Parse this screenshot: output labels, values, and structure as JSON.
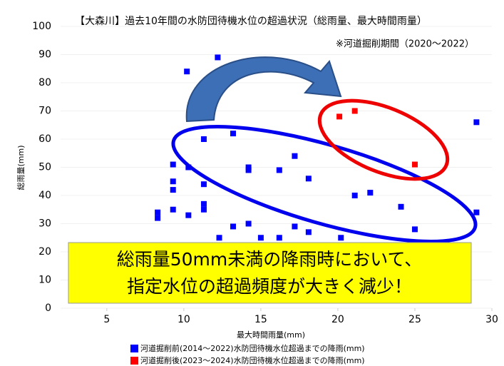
{
  "chart_data": {
    "type": "scatter",
    "title": "【大森川】過去10年間の水防団待機水位の超過状況（総雨量、最大時間雨量）",
    "subtitle": "※河道掘削期間（2020～2022）",
    "annotation": [
      "総雨量50mm未満の降雨時において、",
      "指定水位の超過頻度が大きく減少！"
    ],
    "x_label": "最大時間雨量(mm)",
    "y_label": "総雨量(mm)",
    "xlim": [
      2,
      30
    ],
    "xticks": [
      5,
      10,
      15,
      20,
      25,
      30
    ],
    "ylim": [
      0,
      100
    ],
    "yticks": [
      0,
      10,
      20,
      30,
      40,
      50,
      60,
      70,
      80,
      90,
      100
    ],
    "grid": true,
    "series": [
      {
        "name": "河道掘削前(2014～2022)水防団待機水位超過までの降雨(mm)",
        "color": "#0000ff",
        "x": [
          10.2,
          12.2,
          8.3,
          8.3,
          9.3,
          9.3,
          9.3,
          9.3,
          10.3,
          10.3,
          11.3,
          11.3,
          11.3,
          11.3,
          12.3,
          13.2,
          13.2,
          14.2,
          14.2,
          14.2,
          15.0,
          16.2,
          16.2,
          17.2,
          17.2,
          18.1,
          18.1,
          20.2,
          21.1,
          22.1,
          24.1,
          25.0,
          29.0,
          29.0
        ],
        "values": [
          84,
          89,
          34,
          32,
          51,
          45,
          42,
          35,
          50,
          33,
          60,
          44,
          37,
          35,
          25,
          62,
          29,
          50,
          49,
          30,
          25,
          49,
          25,
          54,
          29,
          46,
          27,
          25,
          40,
          41,
          36,
          28,
          66,
          34
        ]
      },
      {
        "name": "河道掘削後(2023～2024)水防団待機水位超過までの降雨(mm)",
        "color": "#ff0000",
        "x": [
          20.1,
          21.1,
          25.0
        ],
        "values": [
          68,
          70,
          51
        ]
      }
    ]
  }
}
